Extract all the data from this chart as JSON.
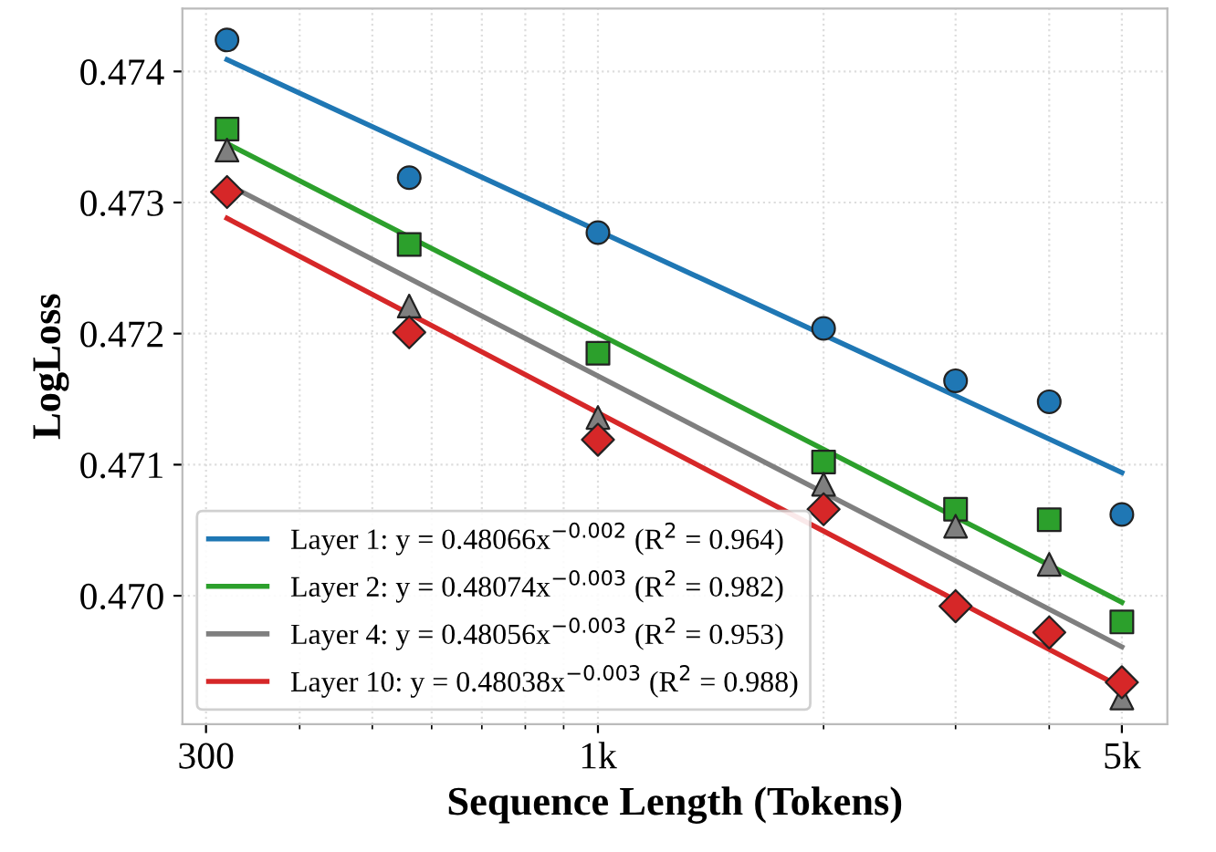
{
  "chart_data": {
    "type": "line",
    "xlabel": "Sequence Length (Tokens)",
    "ylabel": "LogLoss",
    "log": "x",
    "xlim": [
      279,
      5750
    ],
    "xticks": [
      {
        "value": 300,
        "label": "300"
      },
      {
        "value": 1000,
        "label": "1k"
      },
      {
        "value": 5000,
        "label": "5k"
      }
    ],
    "ylim": [
      0.46902,
      0.47448
    ],
    "yticks": [
      {
        "value": 0.47,
        "label": "0.470"
      },
      0.471,
      0.472,
      0.473,
      0.474
    ],
    "grid": true,
    "legend": "bottom left",
    "series": [
      {
        "name": "Layer 1: y = 0.48066x$^{−0.002}$ (R$^{2}$ = 0.964)",
        "color": "#1f77b4",
        "x": [
          320,
          5000
        ],
        "values": [
          0.47409,
          0.47094
        ],
        "marker": "none",
        "line_style": "solid"
      },
      {
        "name": "Layer 2: y = 0.48074x$^{−0.003}$ (R$^{2}$ = 0.982)",
        "color": "#2ca02c",
        "x": [
          320,
          5000
        ],
        "values": [
          0.47345,
          0.46995
        ],
        "marker": "none",
        "line_style": "solid"
      },
      {
        "name": "Layer 4: y = 0.48056x$^{−0.003}$ (R$^{2}$ = 0.953)",
        "color": "#7f7f7f",
        "x": [
          320,
          5000
        ],
        "values": [
          0.47314,
          0.46961
        ],
        "marker": "none",
        "line_style": "solid"
      },
      {
        "name": "Layer 10: y = 0.48038x$^{−0.003}$ (R$^{2}$ = 0.988)",
        "color": "#d62728",
        "x": [
          320,
          5000
        ],
        "values": [
          0.47288,
          0.4693
        ],
        "marker": "none",
        "line_style": "solid"
      },
      {
        "type": "scatter",
        "color": "#1f77b4",
        "marker": "circle",
        "x": [
          320,
          560,
          1000,
          2000,
          3000,
          4000,
          5000
        ],
        "values": [
          0.47424,
          0.47319,
          0.47277,
          0.47204,
          0.47164,
          0.47148,
          0.47062
        ]
      },
      {
        "type": "scatter",
        "color": "#2ca02c",
        "marker": "square",
        "x": [
          320,
          560,
          1000,
          2000,
          3000,
          4000,
          5000
        ],
        "values": [
          0.47356,
          0.47268,
          0.47185,
          0.47102,
          0.47066,
          0.47058,
          0.4698
        ]
      },
      {
        "type": "scatter",
        "color": "#7f7f7f",
        "marker": "triangle",
        "x": [
          320,
          560,
          1000,
          2000,
          3000,
          4000,
          5000
        ],
        "values": [
          0.4734,
          0.47221,
          0.47136,
          0.47085,
          0.47053,
          0.47024,
          0.46922
        ]
      },
      {
        "type": "scatter",
        "color": "#d62728",
        "marker": "diamond",
        "x": [
          320,
          560,
          1000,
          2000,
          3000,
          4000,
          5000
        ],
        "values": [
          0.47308,
          0.47201,
          0.47119,
          0.47066,
          0.46992,
          0.46972,
          0.46934
        ]
      }
    ]
  }
}
